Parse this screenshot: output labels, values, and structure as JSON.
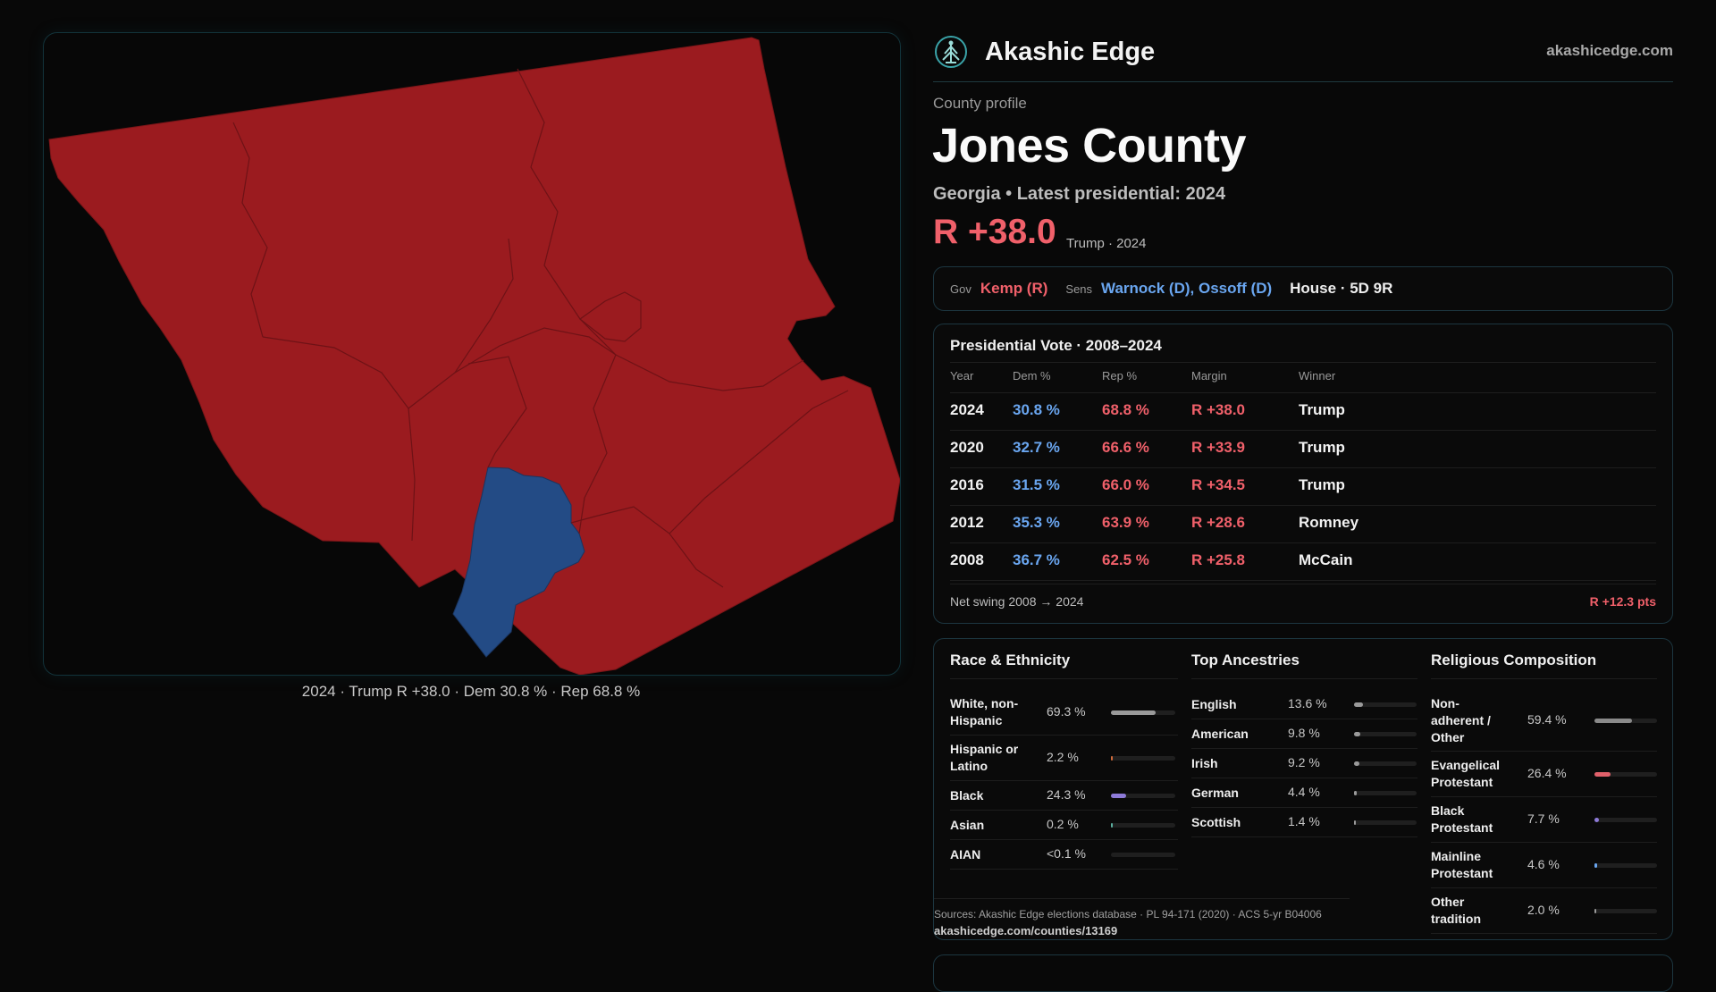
{
  "map": {
    "caption": "2024 · Trump R +38.0 · Dem 30.8 % · Rep 68.8 %",
    "colors": {
      "rep": "#9b1b1f",
      "dem": "#234b85",
      "border": "#7a1518"
    }
  },
  "header": {
    "brand": "Akashic Edge",
    "url": "akashicedge.com",
    "logo_icon": "tree-globe-icon"
  },
  "county": {
    "eyebrow": "County profile",
    "name": "Jones County",
    "subtitle": "Georgia • Latest presidential: 2024",
    "margin": "R +38.0",
    "margin_note": "Trump · 2024"
  },
  "officials": {
    "gov_label": "Gov",
    "gov": "Kemp (R)",
    "sens_label": "Sens",
    "sens": "Warnock (D), Ossoff (D)",
    "house": "House · 5D 9R"
  },
  "presidential": {
    "title": "Presidential Vote · 2008–2024",
    "headers": [
      "Year",
      "Dem %",
      "Rep %",
      "Margin",
      "Winner"
    ],
    "rows": [
      {
        "year": "2024",
        "dem": "30.8 %",
        "rep": "68.8 %",
        "margin": "R +38.0",
        "winner": "Trump"
      },
      {
        "year": "2020",
        "dem": "32.7 %",
        "rep": "66.6 %",
        "margin": "R +33.9",
        "winner": "Trump"
      },
      {
        "year": "2016",
        "dem": "31.5 %",
        "rep": "66.0 %",
        "margin": "R +34.5",
        "winner": "Trump"
      },
      {
        "year": "2012",
        "dem": "35.3 %",
        "rep": "63.9 %",
        "margin": "R +28.6",
        "winner": "Romney"
      },
      {
        "year": "2008",
        "dem": "36.7 %",
        "rep": "62.5 %",
        "margin": "R +25.8",
        "winner": "McCain"
      }
    ],
    "swing_label": "Net swing 2008 → 2024",
    "swing_value": "R +12.3 pts"
  },
  "demographics": {
    "race": {
      "title": "Race & Ethnicity",
      "items": [
        {
          "label": "White, non-Hispanic",
          "value": "69.3 %",
          "frac": 0.693,
          "color": "#9a9a9a"
        },
        {
          "label": "Hispanic or Latino",
          "value": "2.2 %",
          "frac": 0.022,
          "color": "#d06a3a"
        },
        {
          "label": "Black",
          "value": "24.3 %",
          "frac": 0.243,
          "color": "#8d7ad8"
        },
        {
          "label": "Asian",
          "value": "0.2 %",
          "frac": 0.002,
          "color": "#5bb0a0"
        },
        {
          "label": "AIAN",
          "value": "<0.1 %",
          "frac": 0.0,
          "color": "#aaaaaa"
        }
      ]
    },
    "ancestry": {
      "title": "Top Ancestries",
      "items": [
        {
          "label": "English",
          "value": "13.6 %",
          "frac": 0.136,
          "color": "#9a9a9a"
        },
        {
          "label": "American",
          "value": "9.8 %",
          "frac": 0.098,
          "color": "#9a9a9a"
        },
        {
          "label": "Irish",
          "value": "9.2 %",
          "frac": 0.092,
          "color": "#9a9a9a"
        },
        {
          "label": "German",
          "value": "4.4 %",
          "frac": 0.044,
          "color": "#9a9a9a"
        },
        {
          "label": "Scottish",
          "value": "1.4 %",
          "frac": 0.014,
          "color": "#9a9a9a"
        }
      ]
    },
    "religion": {
      "title": "Religious Composition",
      "items": [
        {
          "label": "Non-adherent / Other",
          "value": "59.4 %",
          "frac": 0.594,
          "color": "#8a8a8a"
        },
        {
          "label": "Evangelical Protestant",
          "value": "26.4 %",
          "frac": 0.264,
          "color": "#e0606a"
        },
        {
          "label": "Black Protestant",
          "value": "7.7 %",
          "frac": 0.077,
          "color": "#8d7ad8"
        },
        {
          "label": "Mainline Protestant",
          "value": "4.6 %",
          "frac": 0.046,
          "color": "#6aa6f0"
        },
        {
          "label": "Other tradition",
          "value": "2.0 %",
          "frac": 0.02,
          "color": "#9a9a9a"
        }
      ]
    },
    "sources": "Sources: Akashic Edge elections database · PL 94-171 (2020) · ACS 5-yr B04006",
    "sources_url": "akashicedge.com/counties/13169"
  }
}
